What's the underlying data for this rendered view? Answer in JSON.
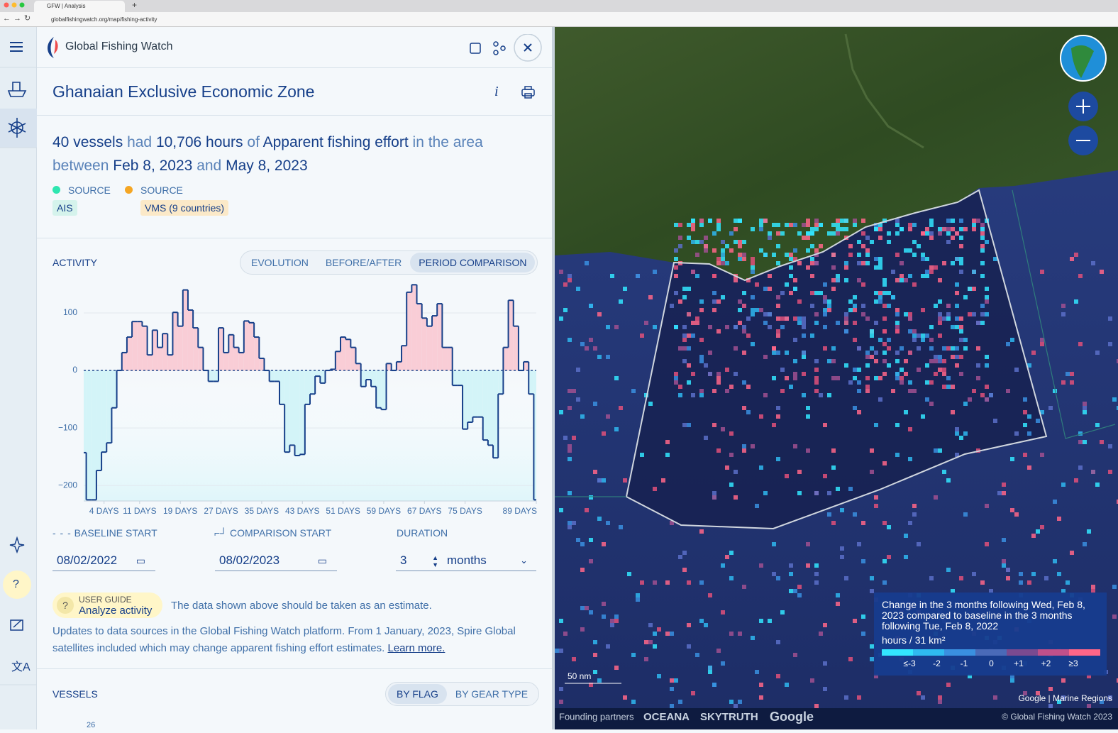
{
  "browser": {
    "tab_title": "GFW | Analysis",
    "url": "globalfishingwatch.org/map/fishing-activity"
  },
  "header": {
    "brand": "Global Fishing Watch"
  },
  "sidebar": {
    "help": "?"
  },
  "report": {
    "title": "Ghanaian Exclusive Economic Zone",
    "summary": [
      {
        "text": "40 vessels",
        "strong": true
      },
      {
        "text": "had",
        "strong": false
      },
      {
        "text": "10,706 hours",
        "strong": true
      },
      {
        "text": "of",
        "strong": false
      },
      {
        "text": "Apparent fishing effort",
        "strong": true
      },
      {
        "text": "in the area",
        "strong": false
      },
      {
        "text": "between",
        "strong": false
      },
      {
        "text": "Feb 8, 2023",
        "strong": true
      },
      {
        "text": "and",
        "strong": false
      },
      {
        "text": "May 8, 2023",
        "strong": true
      }
    ],
    "sources": [
      {
        "label": "SOURCE",
        "name": "AIS",
        "color": "#2ee6b0"
      },
      {
        "label": "SOURCE",
        "name": "VMS (9 countries)",
        "color": "#f5a623"
      }
    ]
  },
  "activity": {
    "label": "ACTIVITY",
    "tabs": [
      "EVOLUTION",
      "BEFORE/AFTER",
      "PERIOD COMPARISON"
    ],
    "selected": 2
  },
  "chart_data": {
    "type": "step",
    "x": [
      0,
      1,
      2,
      3,
      4,
      5,
      6,
      7,
      8,
      9,
      10,
      11,
      12,
      13,
      14,
      15,
      16,
      17,
      18,
      19,
      20,
      21,
      22,
      23,
      24,
      25,
      26,
      27,
      28,
      29,
      30,
      31,
      32,
      33,
      34,
      35,
      36,
      37,
      38,
      39,
      40,
      41,
      42,
      43,
      44,
      45,
      46,
      47,
      48,
      49,
      50,
      51,
      52,
      53,
      54,
      55,
      56,
      57,
      58,
      59,
      60,
      61,
      62,
      63,
      64,
      65,
      66,
      67,
      68,
      69,
      70,
      71,
      72,
      73,
      74,
      75,
      76,
      77,
      78,
      79,
      80,
      81,
      82,
      83,
      84,
      85,
      86,
      87,
      88,
      89
    ],
    "values": [
      -143,
      -225,
      -225,
      -174,
      -142,
      -126,
      -65,
      0,
      31,
      58,
      85,
      85,
      77,
      27,
      70,
      40,
      64,
      27,
      101,
      77,
      140,
      105,
      74,
      40,
      0,
      -19,
      -19,
      74,
      31,
      62,
      40,
      31,
      86,
      83,
      58,
      21,
      0,
      -19,
      -19,
      -59,
      -142,
      -130,
      -148,
      -146,
      -59,
      -41,
      -10,
      -22,
      0,
      2,
      33,
      58,
      54,
      40,
      12,
      -28,
      -16,
      -28,
      -65,
      -68,
      12,
      0,
      15,
      43,
      136,
      149,
      116,
      91,
      77,
      95,
      116,
      40,
      40,
      -26,
      -26,
      -102,
      -90,
      -81,
      -81,
      -121,
      -130,
      -152,
      -41,
      40,
      122,
      77,
      0,
      15,
      -41,
      -225
    ],
    "color": "#163f89",
    "positive_color": "#f9cdd6",
    "negative_color": "#d3f4f8",
    "xlim": [
      0,
      89
    ],
    "xticks": [
      {
        "value": 4,
        "label": "4 DAYS"
      },
      {
        "value": 11,
        "label": "11 DAYS"
      },
      {
        "value": 19,
        "label": "19 DAYS"
      },
      {
        "value": 27,
        "label": "27 DAYS"
      },
      {
        "value": 35,
        "label": "35 DAYS"
      },
      {
        "value": 43,
        "label": "43 DAYS"
      },
      {
        "value": 51,
        "label": "51 DAYS"
      },
      {
        "value": 59,
        "label": "59 DAYS"
      },
      {
        "value": 67,
        "label": "67 DAYS"
      },
      {
        "value": 75,
        "label": "75 DAYS"
      },
      {
        "value": 89,
        "label": "89 DAYS"
      }
    ],
    "ylim": [
      -227,
      150
    ],
    "yticks": [
      100,
      0,
      {
        "value": -100,
        "label": "−100"
      },
      {
        "value": -200,
        "label": "−200"
      }
    ],
    "grid": true
  },
  "controls": {
    "baseline_label": "BASELINE START",
    "comparison_label": "COMPARISON START",
    "duration_label": "DURATION",
    "baseline_date": "08/02/2022",
    "comparison_date": "08/02/2023",
    "duration": 3,
    "duration_unit": "months"
  },
  "notes": {
    "guide_label": "USER GUIDE",
    "guide_title": "Analyze activity",
    "estimate": "The data shown above should be taken as an estimate.",
    "updates": "Updates to data sources in the Global Fishing Watch platform. From 1 January, 2023, Spire Global satellites included which may change apparent fishing effort estimates.",
    "learn_more": "Learn more."
  },
  "vessels": {
    "label": "VESSELS",
    "tabs": [
      "BY FLAG",
      "BY GEAR TYPE"
    ],
    "selected": 0,
    "first_tick": 26
  },
  "map": {
    "legend_title": "Change in the 3 months following Wed, Feb 8, 2023 compared to baseline in the 3 months following Tue, Feb 8, 2022",
    "unit": "hours / 31 km²",
    "legend_labels": [
      "≤-3",
      "-2",
      "-1",
      "0",
      "+1",
      "+2",
      "≥3"
    ],
    "scale": "50 nm",
    "attribution": "Google | Marine Regions",
    "footer": {
      "partners_label": "Founding partners",
      "partners": [
        "OCEANA",
        "SKYTRUTH",
        "Google"
      ],
      "copyright": "© Global Fishing Watch 2023"
    }
  }
}
